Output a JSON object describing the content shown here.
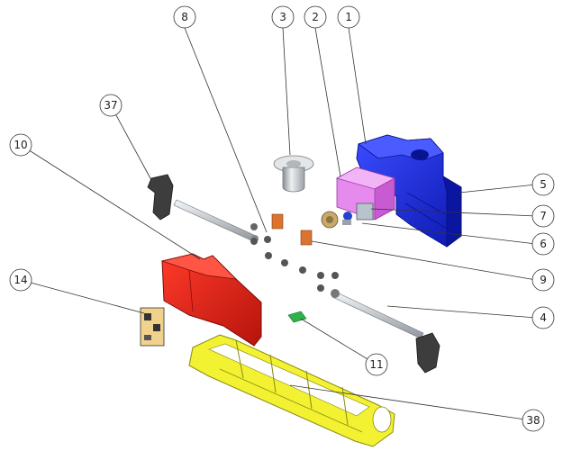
{
  "diagram": {
    "type": "exploded-assembly",
    "balloons": [
      {
        "id": "b1",
        "label": "1"
      },
      {
        "id": "b2",
        "label": "2"
      },
      {
        "id": "b3",
        "label": "3"
      },
      {
        "id": "b4",
        "label": "4"
      },
      {
        "id": "b5",
        "label": "5"
      },
      {
        "id": "b6",
        "label": "6"
      },
      {
        "id": "b7",
        "label": "7"
      },
      {
        "id": "b8",
        "label": "8"
      },
      {
        "id": "b9",
        "label": "9"
      },
      {
        "id": "b10",
        "label": "10"
      },
      {
        "id": "b11",
        "label": "11"
      },
      {
        "id": "b14",
        "label": "14"
      },
      {
        "id": "b37",
        "label": "37"
      },
      {
        "id": "b38",
        "label": "38"
      }
    ],
    "colors": {
      "blue_housing": "#1f2fd8",
      "pink_bracket": "#e079e8",
      "red_housing": "#e4231a",
      "yellow_frame": "#f2f233",
      "copper_part": "#d9732f",
      "gray_part": "#3d3d3d",
      "shaft": "#d4d8dc",
      "pcb_green": "#2fb24a"
    }
  }
}
